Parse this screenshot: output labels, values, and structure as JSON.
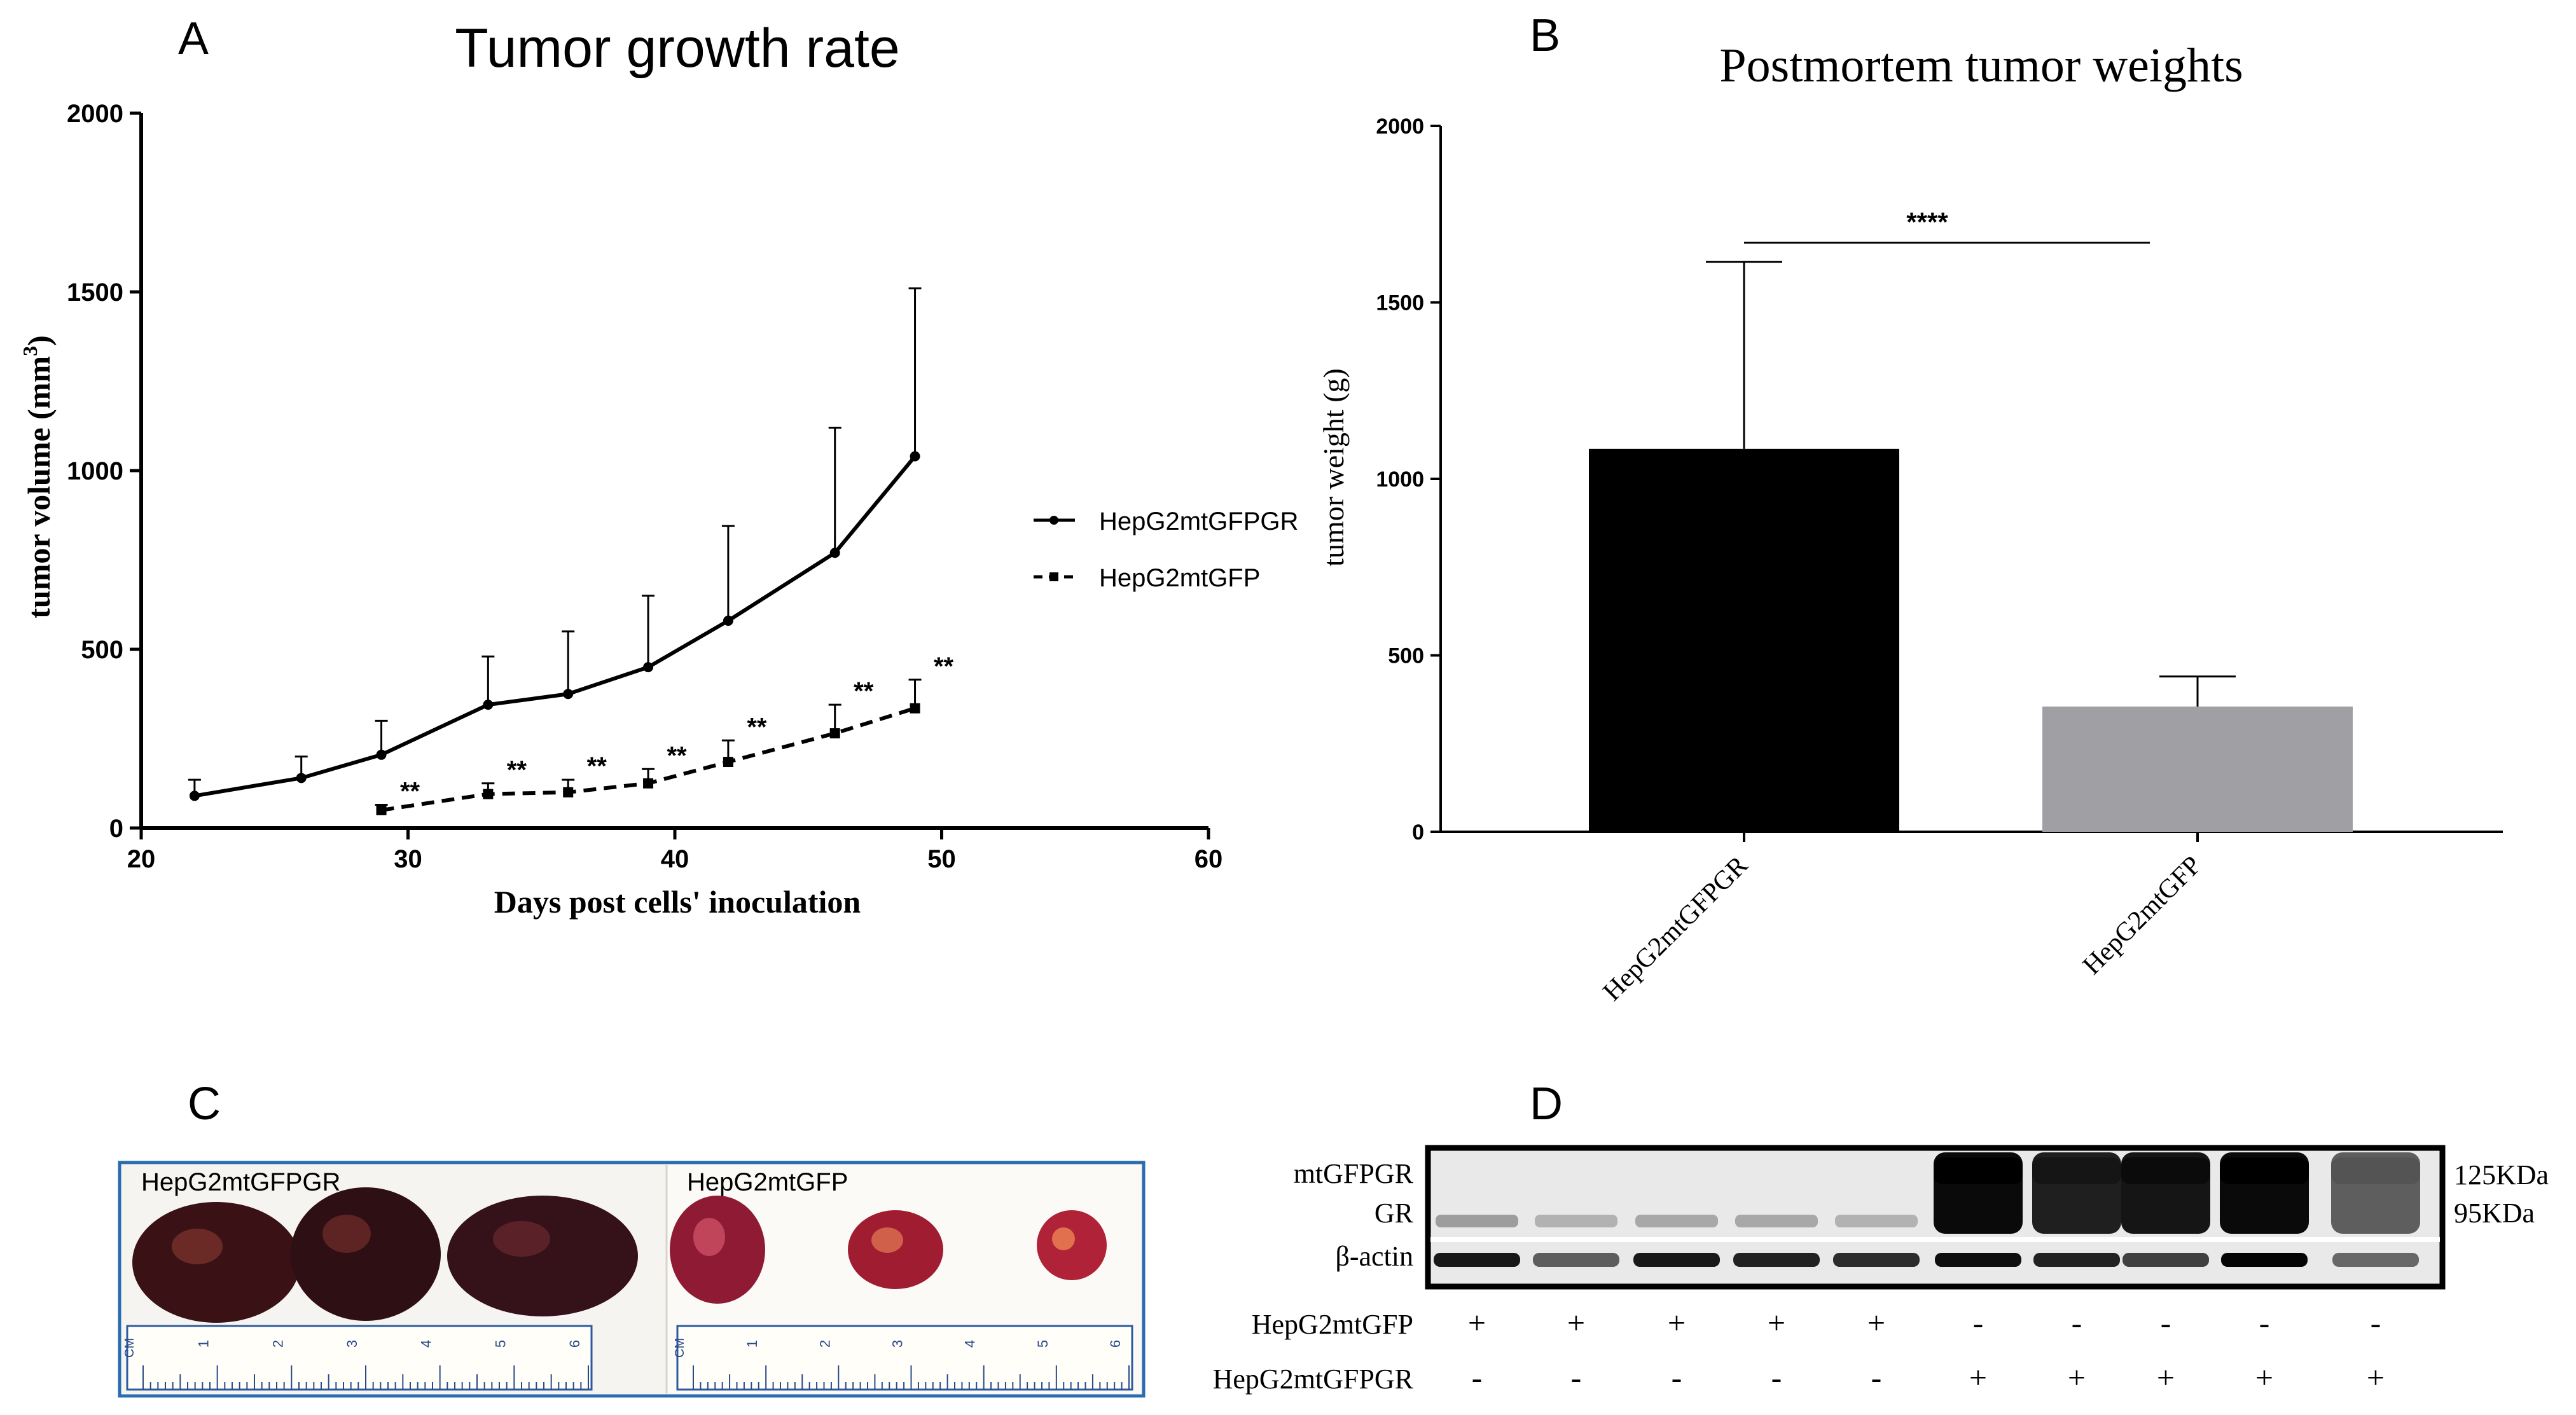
{
  "panel_labels": {
    "a": "A",
    "b": "B",
    "c": "C",
    "d": "D"
  },
  "chart_data": [
    {
      "type": "line",
      "title": "Tumor growth rate",
      "xlabel": "Days post cells' inoculation",
      "ylabel": "tumor volume (mm",
      "ylabel_sup": "3",
      "ylabel_close": ")",
      "xlim": [
        20,
        60
      ],
      "ylim": [
        0,
        2000
      ],
      "x_ticks": [
        20,
        30,
        40,
        50,
        60
      ],
      "y_ticks": [
        0,
        500,
        1000,
        1500,
        2000
      ],
      "legend_position": "right",
      "significance_label": "**",
      "series": [
        {
          "name": "HepG2mtGFPGR",
          "style": "solid",
          "x": [
            22,
            26,
            29,
            33,
            36,
            39,
            42,
            46,
            49
          ],
          "y": [
            90,
            140,
            205,
            345,
            375,
            450,
            580,
            770,
            1040
          ],
          "err": [
            45,
            60,
            95,
            135,
            175,
            200,
            265,
            350,
            470
          ]
        },
        {
          "name": "HepG2mtGFP",
          "style": "dashed",
          "x": [
            29,
            33,
            36,
            39,
            42,
            46,
            49
          ],
          "y": [
            50,
            95,
            100,
            125,
            185,
            265,
            335
          ],
          "err": [
            15,
            30,
            35,
            40,
            60,
            80,
            80
          ]
        }
      ]
    },
    {
      "type": "bar",
      "title": "Postmortem tumor weights",
      "xlabel": "",
      "ylabel": "tumor weight (g)",
      "ylim": [
        0,
        2000
      ],
      "y_ticks": [
        0,
        500,
        1000,
        1500,
        2000
      ],
      "categories": [
        "HepG2mtGFPGR",
        "HepG2mtGFP"
      ],
      "values": [
        1085,
        355
      ],
      "errors": [
        530,
        85
      ],
      "colors": [
        "#000000",
        "#a0a0a4"
      ],
      "significance_label": "****"
    }
  ],
  "photo": {
    "label_left": "HepG2mtGFPGR",
    "label_right": "HepG2mtGFP",
    "ruler_unit": "CM",
    "ruler_numbers": [
      "1",
      "2",
      "3",
      "4",
      "5",
      "6"
    ]
  },
  "blot": {
    "row_labels": [
      "mtGFPGR",
      "GR",
      "β-actin"
    ],
    "size_markers": [
      "125KDa",
      "95KDa"
    ],
    "conditions": [
      {
        "name": "HepG2mtGFP",
        "marks": [
          "+",
          "+",
          "+",
          "+",
          "+",
          "-",
          "-",
          "-",
          "-",
          "-"
        ]
      },
      {
        "name": "HepG2mtGFPGR",
        "marks": [
          "-",
          "-",
          "-",
          "-",
          "-",
          "+",
          "+",
          "+",
          "+",
          "+"
        ]
      }
    ],
    "gr_band_strength": [
      0.3,
      0.2,
      0.25,
      0.25,
      0.2,
      1.0,
      0.9,
      0.95,
      1.0,
      0.6
    ],
    "actin_band_strength": [
      0.9,
      0.55,
      0.9,
      0.85,
      0.8,
      0.95,
      0.85,
      0.7,
      1.0,
      0.5
    ]
  },
  "colors": {
    "bar_gfpgr": "#000000",
    "bar_gfp": "#a0a0a4",
    "photo_frame": "#2b6cb0",
    "tumor_dark": "#3a1216",
    "tumor_red": "#a01c30"
  }
}
